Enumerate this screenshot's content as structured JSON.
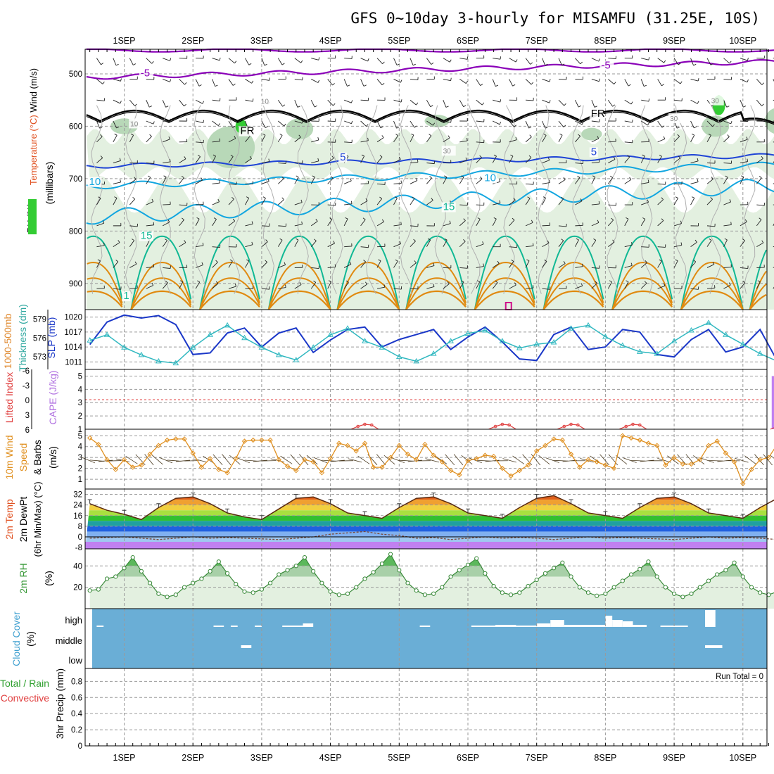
{
  "title": "GFS 0~10day 3-hourly for MISAMFU (31.25E, 10S)",
  "dates": [
    "1SEP",
    "2SEP",
    "3SEP",
    "4SEP",
    "5SEP",
    "6SEP",
    "7SEP",
    "8SEP",
    "9SEP",
    "10SEP"
  ],
  "colors": {
    "purple": "#8a00b8",
    "black": "#000000",
    "blue": "#1f44d6",
    "cyan": "#12a6e0",
    "teal": "#10b894",
    "orange": "#e08a10",
    "magenta": "#d0108a",
    "green_lite": "#e3f0e0",
    "green_mid": "#b8d8b8",
    "green_dark": "#7aa87a",
    "slp": "#1a37c8",
    "thick": "#30b8c0",
    "cape": "#c080f0",
    "li": "#e04040",
    "wind": "#e09020",
    "cloud": "#6aaed6",
    "rh2m": "#3a8a3a"
  },
  "panels": {
    "upper": {
      "labels": [
        "Wind (m/s)",
        "Temperature (°C)",
        "RH (%)",
        "(millibars)"
      ],
      "yticks": [
        "500",
        "600",
        "700",
        "800",
        "900"
      ],
      "contour_labels": [
        {
          "text": "-5",
          "color": "purple",
          "day": 0.3,
          "p": 505
        },
        {
          "text": "-5",
          "color": "purple",
          "day": 7.0,
          "p": 490
        },
        {
          "text": "FR",
          "color": "black",
          "day": 1.75,
          "p": 615
        },
        {
          "text": "FR",
          "color": "black",
          "day": 6.85,
          "p": 582
        },
        {
          "text": "5",
          "color": "blue",
          "day": 3.2,
          "p": 665
        },
        {
          "text": "5",
          "color": "blue",
          "day": 6.85,
          "p": 655
        },
        {
          "text": "10",
          "color": "cyan",
          "day": -0.45,
          "p": 712
        },
        {
          "text": "10",
          "color": "cyan",
          "day": 5.3,
          "p": 705
        },
        {
          "text": "15",
          "color": "teal",
          "day": 0.3,
          "p": 815
        },
        {
          "text": "15",
          "color": "teal",
          "day": 4.7,
          "p": 760
        },
        {
          "text": "1",
          "color": "teal",
          "day": 0.05,
          "p": 930
        },
        {
          "text": "10",
          "color": "grey",
          "day": 2.05,
          "p": 557
        },
        {
          "text": "30",
          "color": "grey",
          "day": 4.7,
          "p": 652
        },
        {
          "text": "30",
          "color": "grey",
          "day": 8.0,
          "p": 590
        },
        {
          "text": "30",
          "color": "grey",
          "day": 8.6,
          "p": 556
        },
        {
          "text": "10",
          "color": "grey",
          "day": 0.15,
          "p": 600
        }
      ]
    },
    "slp": {
      "labels": [
        "1000-500mb",
        "Thickness (dm)",
        "SLP (mb)"
      ],
      "left_ticks": [
        "579",
        "576",
        "573"
      ],
      "right_ticks": [
        "1020",
        "1017",
        "1014",
        "1011"
      ],
      "x": [
        -0.5,
        -0.25,
        0,
        0.25,
        0.5,
        0.75,
        1,
        1.25,
        1.5,
        1.75,
        2,
        2.25,
        2.5,
        2.75,
        3,
        3.25,
        3.5,
        3.75,
        4,
        4.25,
        4.5,
        4.75,
        5,
        5.25,
        5.5,
        5.75,
        6,
        6.25,
        6.5,
        6.75,
        7,
        7.25,
        7.5,
        7.75,
        8,
        8.25,
        8.5,
        8.75,
        9,
        9.25,
        9.5,
        9.75,
        10,
        10.25
      ],
      "slp_values": [
        1014.5,
        1019,
        1020.4,
        1019.8,
        1020.3,
        1018.5,
        1012.5,
        1012.8,
        1016.8,
        1017.8,
        1014,
        1016.8,
        1017.8,
        1012.9,
        1015.4,
        1017.5,
        1018,
        1014,
        1015.5,
        1016.5,
        1017.5,
        1013.5,
        1016,
        1018,
        1015,
        1011.6,
        1011.3,
        1016.5,
        1018,
        1013.5,
        1014,
        1017.5,
        1017,
        1012.5,
        1012,
        1015.5,
        1017.5,
        1013,
        1014,
        1017.5,
        1011.2,
        1010.8,
        1016,
        1017.8
      ],
      "thick_values": [
        575.6,
        576.5,
        574.5,
        573.3,
        572.3,
        572,
        574.5,
        576.5,
        578,
        576,
        574.5,
        573.3,
        572.5,
        574.5,
        576.5,
        577.5,
        575.5,
        574.5,
        573,
        572.3,
        573.5,
        575.5,
        576.7,
        577.2,
        575.5,
        574.4,
        575,
        575.3,
        577.5,
        578,
        576.2,
        574.8,
        573.8,
        573.5,
        575.5,
        577.2,
        578.4,
        576.5,
        575,
        573.5,
        572.3,
        572.8,
        573.4,
        574
      ]
    },
    "cape": {
      "labels": [
        "Lifted Index",
        "CAPE (J/kg)"
      ],
      "left_ticks": [
        "-6",
        "-3",
        "0",
        "3",
        "6"
      ],
      "right_ticks": [
        "5",
        "4",
        "3",
        "2",
        "1"
      ],
      "bars": [
        {
          "day": 9.45,
          "cape": 5
        }
      ],
      "li_bumps": [
        3.5,
        5.5,
        6.5,
        7.4,
        9.6
      ]
    },
    "wind10": {
      "labels": [
        "10m Wind",
        "Speed",
        "& Barbs",
        "(m/s)"
      ],
      "yticks": [
        "5",
        "4",
        "3",
        "2",
        "1"
      ],
      "x": [
        -0.5,
        -0.375,
        -0.25,
        -0.125,
        0,
        0.125,
        0.25,
        0.375,
        0.5,
        0.625,
        0.75,
        0.875,
        1,
        1.125,
        1.25,
        1.375,
        1.5,
        1.625,
        1.75,
        1.875,
        2,
        2.125,
        2.25,
        2.375,
        2.5,
        2.625,
        2.75,
        2.875,
        3,
        3.125,
        3.25,
        3.375,
        3.5,
        3.625,
        3.75,
        3.875,
        4,
        4.125,
        4.25,
        4.375,
        4.5,
        4.625,
        4.75,
        4.875,
        5,
        5.125,
        5.25,
        5.375,
        5.5,
        5.625,
        5.75,
        5.875,
        6,
        6.125,
        6.25,
        6.375,
        6.5,
        6.625,
        6.75,
        6.875,
        7,
        7.125,
        7.25,
        7.375,
        7.5,
        7.625,
        7.75,
        7.875,
        8,
        8.125,
        8.25,
        8.375,
        8.5,
        8.625,
        8.75,
        8.875,
        9,
        9.125,
        9.25,
        9.375,
        9.5,
        9.625,
        9.75,
        9.875,
        10,
        10.125,
        10.25
      ],
      "values": [
        4.8,
        4.2,
        2.8,
        1.9,
        2.8,
        2.1,
        2.3,
        3.3,
        4.1,
        4.6,
        4.7,
        4.7,
        3.4,
        2.1,
        2.9,
        1.9,
        1.6,
        2.9,
        4.5,
        4.6,
        4.6,
        4.6,
        2.8,
        2.2,
        1.8,
        2.8,
        2.6,
        1.6,
        2.9,
        4.3,
        4.1,
        3.6,
        4.3,
        2.1,
        2.1,
        3.0,
        4.1,
        3.3,
        2.8,
        4.2,
        3.2,
        2.6,
        1.8,
        1.4,
        2.7,
        2.9,
        3.2,
        3.1,
        2.0,
        1.3,
        1.8,
        2.3,
        3.6,
        4.1,
        4.7,
        4.6,
        3.3,
        2.1,
        2.8,
        2.6,
        2.3,
        2.0,
        5.0,
        4.8,
        4.6,
        4.3,
        4.1,
        2.3,
        3.0,
        2.4,
        2.4,
        2.8,
        4.1,
        4.5,
        3.4,
        2.6,
        0.6,
        1.9,
        2.8,
        3.0,
        4.2,
        4.2,
        2.5,
        2.6,
        2.9,
        1.8,
        2.3
      ]
    },
    "temp2m": {
      "labels": [
        "2m Temp",
        "2m DewPt",
        "(6hr Min/Max) (°C)"
      ],
      "yticks": [
        "32",
        "24",
        "16",
        "8",
        "0",
        "-8"
      ],
      "x": [
        -0.5,
        -0.25,
        0,
        0.25,
        0.5,
        0.75,
        1,
        1.25,
        1.5,
        1.75,
        2,
        2.25,
        2.5,
        2.75,
        3,
        3.25,
        3.5,
        3.75,
        4,
        4.25,
        4.5,
        4.75,
        5,
        5.25,
        5.5,
        5.75,
        6,
        6.25,
        6.5,
        6.75,
        7,
        7.25,
        7.5,
        7.75,
        8,
        8.25,
        8.5,
        8.75,
        9,
        9.25,
        9.5,
        9.75,
        10,
        10.25
      ],
      "temp_values": [
        25,
        20,
        17,
        13,
        22,
        29,
        30,
        25,
        18,
        15,
        13,
        21,
        29,
        30,
        25,
        18,
        16,
        14,
        22,
        29,
        30,
        25,
        18,
        16,
        14,
        22,
        29,
        31,
        25,
        18,
        16,
        14,
        22,
        29,
        30,
        25,
        18,
        16,
        14,
        22,
        29,
        30,
        25,
        18
      ],
      "dew_values": [
        -1,
        -0.5,
        0,
        -1,
        -2,
        -1,
        0,
        -1,
        -0.5,
        -1,
        -1.5,
        -2,
        -1,
        0,
        2,
        3,
        4,
        2,
        1,
        -1,
        -0.5,
        -2,
        -1,
        0,
        -1,
        -0.5,
        -1,
        -2,
        -1,
        0,
        -1,
        -0.5,
        -1,
        -1.5,
        -2,
        -1,
        0,
        -1,
        -0.5,
        -1,
        -2,
        -1,
        2,
        5
      ]
    },
    "rh2m": {
      "labels": [
        "2m RH",
        "(%)"
      ],
      "yticks": [
        "40",
        "20"
      ],
      "x": [
        -0.5,
        -0.375,
        -0.25,
        -0.125,
        0,
        0.125,
        0.25,
        0.375,
        0.5,
        0.625,
        0.75,
        0.875,
        1,
        1.125,
        1.25,
        1.375,
        1.5,
        1.625,
        1.75,
        1.875,
        2,
        2.125,
        2.25,
        2.375,
        2.5,
        2.625,
        2.75,
        2.875,
        3,
        3.125,
        3.25,
        3.375,
        3.5,
        3.625,
        3.75,
        3.875,
        4,
        4.125,
        4.25,
        4.375,
        4.5,
        4.625,
        4.75,
        4.875,
        5,
        5.125,
        5.25,
        5.375,
        5.5,
        5.625,
        5.75,
        5.875,
        6,
        6.125,
        6.25,
        6.375,
        6.5,
        6.625,
        6.75,
        6.875,
        7,
        7.125,
        7.25,
        7.375,
        7.5,
        7.625,
        7.75,
        7.875,
        8,
        8.125,
        8.25,
        8.375,
        8.5,
        8.625,
        8.75,
        8.875,
        9,
        9.125,
        9.25,
        9.375,
        9.5,
        9.625,
        9.75,
        9.875,
        10,
        10.125,
        10.25
      ],
      "values": [
        17,
        18,
        28,
        30,
        38,
        48,
        35,
        24,
        14,
        11,
        13,
        20,
        24,
        28,
        35,
        44,
        33,
        23,
        16,
        15,
        18,
        24,
        32,
        36,
        40,
        48,
        35,
        24,
        16,
        13,
        14,
        20,
        28,
        34,
        42,
        51,
        36,
        24,
        17,
        13,
        14,
        20,
        30,
        36,
        41,
        47,
        33,
        21,
        15,
        13,
        15,
        21,
        27,
        33,
        38,
        43,
        30,
        20,
        15,
        12,
        14,
        20,
        26,
        32,
        37,
        44,
        30,
        20,
        14,
        11,
        14,
        20,
        26,
        32,
        36,
        43,
        30,
        20,
        15,
        13,
        16,
        22,
        30,
        37,
        43,
        51,
        35
      ]
    },
    "cloud": {
      "labels": [
        "Cloud Cover",
        "(%)"
      ],
      "yticks": [
        "high",
        "middle",
        "low"
      ]
    },
    "precip": {
      "labels": [
        "Total / Rain",
        "Convective",
        "3hr Precip (mm)"
      ],
      "yticks": [
        "0.8",
        "0.6",
        "0.4",
        "0.2",
        "0"
      ],
      "run_total": "Run Total = 0"
    }
  },
  "chart_data": {
    "type": "line",
    "title": "GFS 0~10day 3-hourly for MISAMFU (31.25E, 10S)",
    "categories": [
      "1SEP",
      "2SEP",
      "3SEP",
      "4SEP",
      "5SEP",
      "6SEP",
      "7SEP",
      "8SEP",
      "9SEP",
      "10SEP"
    ],
    "cape_bar": {
      "day": "9SEP",
      "value": 5
    },
    "precip_run_total": 0
  }
}
